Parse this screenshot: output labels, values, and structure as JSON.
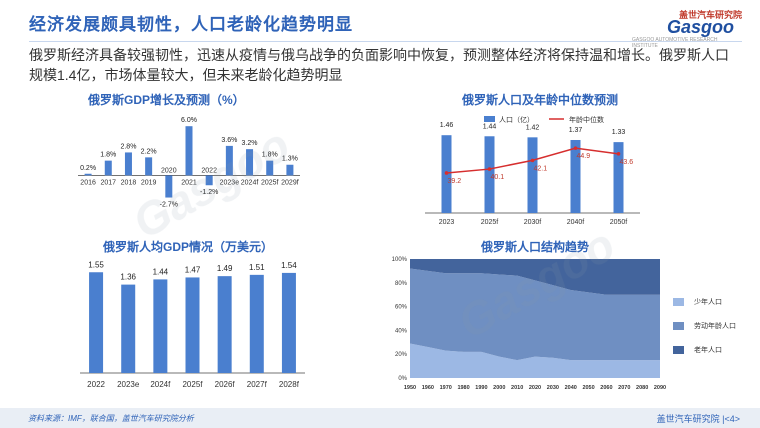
{
  "title": "经济发展颇具韧性，人口老龄化趋势明显",
  "logo": {
    "cn": "盖世汽车研究院",
    "en": "Gasgoo",
    "tag": "GASGOO AUTOMOTIVE RESEARCH INSTITUTE"
  },
  "summary": "俄罗斯经济具备较强韧性，迅速从疫情与俄乌战争的负面影响中恢复，预测整体经济将保持温和增长。俄罗斯人口规模1.4亿，市场体量较大，但未来老龄化趋势明显",
  "footer": {
    "source": "资料来源：IMF，联合国，盖世汽车研究院分析",
    "brand": "盖世汽车研究院",
    "page": "|<4>"
  },
  "colors": {
    "bar": "#4a7fcf",
    "line": "#d62e2e",
    "accent": "#2f63b8"
  },
  "chart_data": [
    {
      "type": "bar",
      "title": "俄罗斯GDP增长及预测（%）",
      "categories": [
        "2016",
        "2017",
        "2018",
        "2019",
        "2020",
        "2021",
        "2022",
        "2023e",
        "2024f",
        "2025f",
        "2029f"
      ],
      "values": [
        0.2,
        1.8,
        2.8,
        2.2,
        -2.7,
        6.0,
        -1.2,
        3.6,
        3.2,
        1.8,
        1.3
      ],
      "labels": [
        "0.2%",
        "1.8%",
        "2.8%",
        "2.2%",
        "-2.7%",
        "6.0%",
        "-1.2%",
        "3.6%",
        "3.2%",
        "1.8%",
        "1.3%"
      ],
      "ylim": [
        -3,
        7
      ]
    },
    {
      "type": "bar",
      "title": "俄罗斯人口及年龄中位数预测",
      "categories": [
        "2023",
        "2025f",
        "2030f",
        "2040f",
        "2050f"
      ],
      "series": [
        {
          "name": "人口（亿）",
          "type": "bar",
          "values": [
            1.46,
            1.44,
            1.42,
            1.37,
            1.33
          ],
          "labels": [
            "1.46",
            "1.44",
            "1.42",
            "1.37",
            "1.33"
          ]
        },
        {
          "name": "年龄中位数",
          "type": "line",
          "values": [
            39.2,
            40.1,
            42.1,
            44.9,
            43.6
          ],
          "labels": [
            "39.2",
            "40.1",
            "42.1",
            "44.9",
            "43.6"
          ]
        }
      ],
      "ylim_bar": [
        0,
        1.6
      ],
      "ylim_line": [
        30,
        50
      ]
    },
    {
      "type": "bar",
      "title": "俄罗斯人均GDP情况（万美元）",
      "categories": [
        "2022",
        "2023e",
        "2024f",
        "2025f",
        "2026f",
        "2027f",
        "2028f"
      ],
      "values": [
        1.55,
        1.36,
        1.44,
        1.47,
        1.49,
        1.51,
        1.54
      ],
      "labels": [
        "1.55",
        "1.36",
        "1.44",
        "1.47",
        "1.49",
        "1.51",
        "1.54"
      ],
      "ylim": [
        0,
        1.6
      ]
    },
    {
      "type": "area",
      "title": "俄罗斯人口结构趋势",
      "x": [
        "1950",
        "1960",
        "1970",
        "1980",
        "1990",
        "2000",
        "2010",
        "2020",
        "2030",
        "2040",
        "2050",
        "2060",
        "2070",
        "2080",
        "2090"
      ],
      "yticks": [
        "100%",
        "80%",
        "60%",
        "40%",
        "20%",
        "0%"
      ],
      "series": [
        {
          "name": "少年人口",
          "values": [
            29,
            26,
            23,
            22,
            22,
            18,
            15,
            18,
            17,
            15,
            15,
            15,
            15,
            15,
            15
          ]
        },
        {
          "name": "劳动年龄人口",
          "values": [
            63,
            64,
            65,
            66,
            66,
            69,
            71,
            64,
            61,
            59,
            57,
            55,
            55,
            55,
            55
          ]
        },
        {
          "name": "老年人口",
          "values": [
            8,
            10,
            12,
            12,
            12,
            13,
            14,
            18,
            22,
            26,
            28,
            30,
            30,
            30,
            30
          ]
        }
      ],
      "ylim": [
        0,
        100
      ],
      "legend_position": "right"
    }
  ]
}
